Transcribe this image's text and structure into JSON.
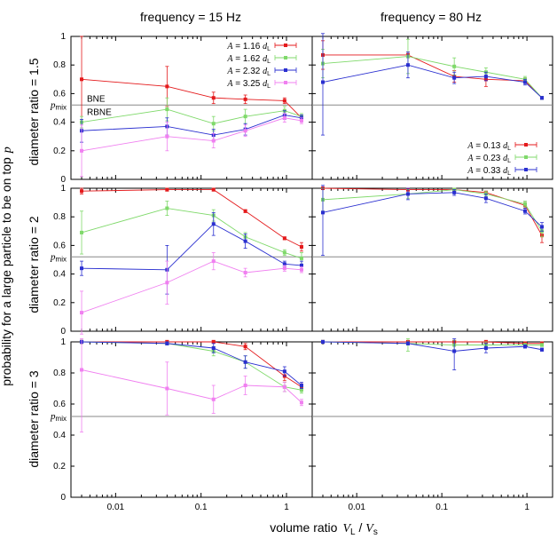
{
  "chart_data": {
    "type": "line",
    "xscale": "log",
    "xlim": [
      0.003,
      2
    ],
    "ylim": [
      0,
      1
    ],
    "xticks": [
      {
        "v": 0.01,
        "label": "0.01"
      },
      {
        "v": 0.1,
        "label": "0.1"
      },
      {
        "v": 1,
        "label": "1"
      }
    ],
    "yticks": [
      {
        "v": 0,
        "label": "0"
      },
      {
        "v": 0.2,
        "label": "0.2"
      },
      {
        "v": 0.4,
        "label": "0.4"
      },
      {
        "v": 0.6,
        "label": "0.6"
      },
      {
        "v": 0.8,
        "label": "0.8"
      },
      {
        "v": 1,
        "label": "1"
      }
    ],
    "column_titles": [
      "frequency = 15 Hz",
      "frequency = 80 Hz"
    ],
    "row_titles": [
      "diameter ratio = 1.5",
      "diameter ratio = 2",
      "diameter ratio = 3"
    ],
    "ylabel": "probability for a large particle to be on top",
    "ylabel_symbol": "p",
    "xlabel": "volume ratio",
    "xlabel_num": "V",
    "xlabel_num_sub": "L",
    "xlabel_sep": " / ",
    "xlabel_den": "V",
    "xlabel_den_sub": "s",
    "pmix": 0.52,
    "pmix_label": "p",
    "pmix_sub": "mix",
    "bne_label": "BNE",
    "rbne_label": "RBNE",
    "colors": {
      "red": "#e41a1c",
      "green": "#7fd96a",
      "blue": "#2a2fd0",
      "magenta": "#f080f0",
      "axis": "#000000",
      "hline": "#888888"
    },
    "x": [
      0.004,
      0.04,
      0.14,
      0.33,
      0.95,
      1.5
    ],
    "panels": [
      {
        "row": 0,
        "col": 0,
        "legend_unit": "d",
        "legend_unit_sub": "L",
        "series": [
          {
            "name": "A = 1.16",
            "color": "red",
            "values": [
              0.7,
              0.65,
              0.57,
              0.56,
              0.55,
              0.43
            ],
            "errors": [
              0.3,
              0.14,
              0.04,
              0.03,
              0.02,
              0.02
            ]
          },
          {
            "name": "A = 1.62",
            "color": "green",
            "values": [
              0.4,
              0.49,
              0.39,
              0.44,
              0.48,
              0.44
            ],
            "errors": [
              0.04,
              0.08,
              0.05,
              0.05,
              0.03,
              0.02
            ]
          },
          {
            "name": "A = 2.32",
            "color": "blue",
            "values": [
              0.34,
              0.37,
              0.31,
              0.35,
              0.45,
              0.43
            ],
            "errors": [
              0.08,
              0.06,
              0.04,
              0.04,
              0.03,
              0.02
            ]
          },
          {
            "name": "A = 3.25",
            "color": "magenta",
            "values": [
              0.2,
              0.3,
              0.27,
              0.34,
              0.43,
              0.41
            ],
            "errors": [
              0.18,
              0.1,
              0.05,
              0.04,
              0.03,
              0.02
            ]
          }
        ]
      },
      {
        "row": 0,
        "col": 1,
        "legend_unit": "d",
        "legend_unit_sub": "L",
        "series": [
          {
            "name": "A = 0.13",
            "color": "red",
            "values": [
              0.87,
              0.87,
              0.72,
              0.7,
              0.69,
              0.57
            ],
            "errors": [
              0.1,
              0.02,
              0.04,
              0.05,
              0.02,
              0.01
            ]
          },
          {
            "name": "A = 0.23",
            "color": "green",
            "values": [
              0.81,
              0.86,
              0.79,
              0.75,
              0.7,
              0.57
            ],
            "errors": [
              0.1,
              0.12,
              0.06,
              0.03,
              0.02,
              0.01
            ]
          },
          {
            "name": "A = 0.33",
            "color": "blue",
            "values": [
              0.68,
              0.8,
              0.71,
              0.72,
              0.68,
              0.57
            ],
            "errors": [
              0.37,
              0.09,
              0.04,
              0.03,
              0.02,
              0.01
            ]
          }
        ]
      },
      {
        "row": 1,
        "col": 0,
        "series": [
          {
            "color": "red",
            "values": [
              0.98,
              0.99,
              0.99,
              0.84,
              0.65,
              0.59
            ],
            "errors": [
              0.02,
              0.01,
              0.01,
              0.01,
              0.01,
              0.03
            ]
          },
          {
            "color": "green",
            "values": [
              0.69,
              0.86,
              0.81,
              0.66,
              0.55,
              0.51
            ],
            "errors": [
              0.15,
              0.05,
              0.04,
              0.03,
              0.02,
              0.04
            ]
          },
          {
            "color": "blue",
            "values": [
              0.44,
              0.43,
              0.75,
              0.63,
              0.47,
              0.46
            ],
            "errors": [
              0.05,
              0.17,
              0.08,
              0.05,
              0.02,
              0.03
            ]
          },
          {
            "color": "magenta",
            "values": [
              0.13,
              0.34,
              0.49,
              0.41,
              0.44,
              0.43
            ],
            "errors": [
              0.15,
              0.15,
              0.06,
              0.03,
              0.02,
              0.02
            ]
          }
        ]
      },
      {
        "row": 1,
        "col": 1,
        "series": [
          {
            "color": "red",
            "values": [
              1.0,
              0.99,
              0.99,
              0.97,
              0.88,
              0.67
            ],
            "errors": [
              0.01,
              0.01,
              0.01,
              0.01,
              0.02,
              0.05
            ]
          },
          {
            "color": "green",
            "values": [
              0.92,
              0.96,
              0.99,
              0.96,
              0.89,
              0.7
            ],
            "errors": [
              0.08,
              0.03,
              0.01,
              0.02,
              0.02,
              0.04
            ]
          },
          {
            "color": "blue",
            "values": [
              0.83,
              0.96,
              0.97,
              0.93,
              0.84,
              0.73
            ],
            "errors": [
              0.3,
              0.04,
              0.02,
              0.03,
              0.02,
              0.03
            ]
          }
        ]
      },
      {
        "row": 2,
        "col": 0,
        "series": [
          {
            "color": "red",
            "values": [
              1.0,
              1.0,
              1.0,
              0.97,
              0.78,
              0.71
            ],
            "errors": [
              0.01,
              0.01,
              0.01,
              0.02,
              0.03,
              0.02
            ]
          },
          {
            "color": "green",
            "values": [
              1.0,
              0.99,
              0.94,
              0.87,
              0.71,
              0.69
            ],
            "errors": [
              0.01,
              0.01,
              0.03,
              0.04,
              0.03,
              0.02
            ]
          },
          {
            "color": "blue",
            "values": [
              1.0,
              0.99,
              0.96,
              0.87,
              0.81,
              0.72
            ],
            "errors": [
              0.01,
              0.01,
              0.03,
              0.04,
              0.03,
              0.02
            ]
          },
          {
            "color": "magenta",
            "values": [
              0.82,
              0.7,
              0.63,
              0.72,
              0.71,
              0.61
            ],
            "errors": [
              0.4,
              0.17,
              0.09,
              0.06,
              0.03,
              0.02
            ]
          }
        ]
      },
      {
        "row": 2,
        "col": 1,
        "series": [
          {
            "color": "red",
            "values": [
              1.0,
              1.0,
              1.0,
              1.0,
              0.99,
              0.99
            ],
            "errors": [
              0.01,
              0.01,
              0.01,
              0.01,
              0.01,
              0.01
            ]
          },
          {
            "color": "green",
            "values": [
              1.0,
              0.99,
              0.98,
              0.98,
              0.98,
              0.98
            ],
            "errors": [
              0.01,
              0.05,
              0.03,
              0.02,
              0.01,
              0.01
            ]
          },
          {
            "color": "blue",
            "values": [
              1.0,
              0.99,
              0.94,
              0.96,
              0.97,
              0.95
            ],
            "errors": [
              0.01,
              0.01,
              0.12,
              0.03,
              0.01,
              0.01
            ]
          }
        ]
      }
    ]
  }
}
